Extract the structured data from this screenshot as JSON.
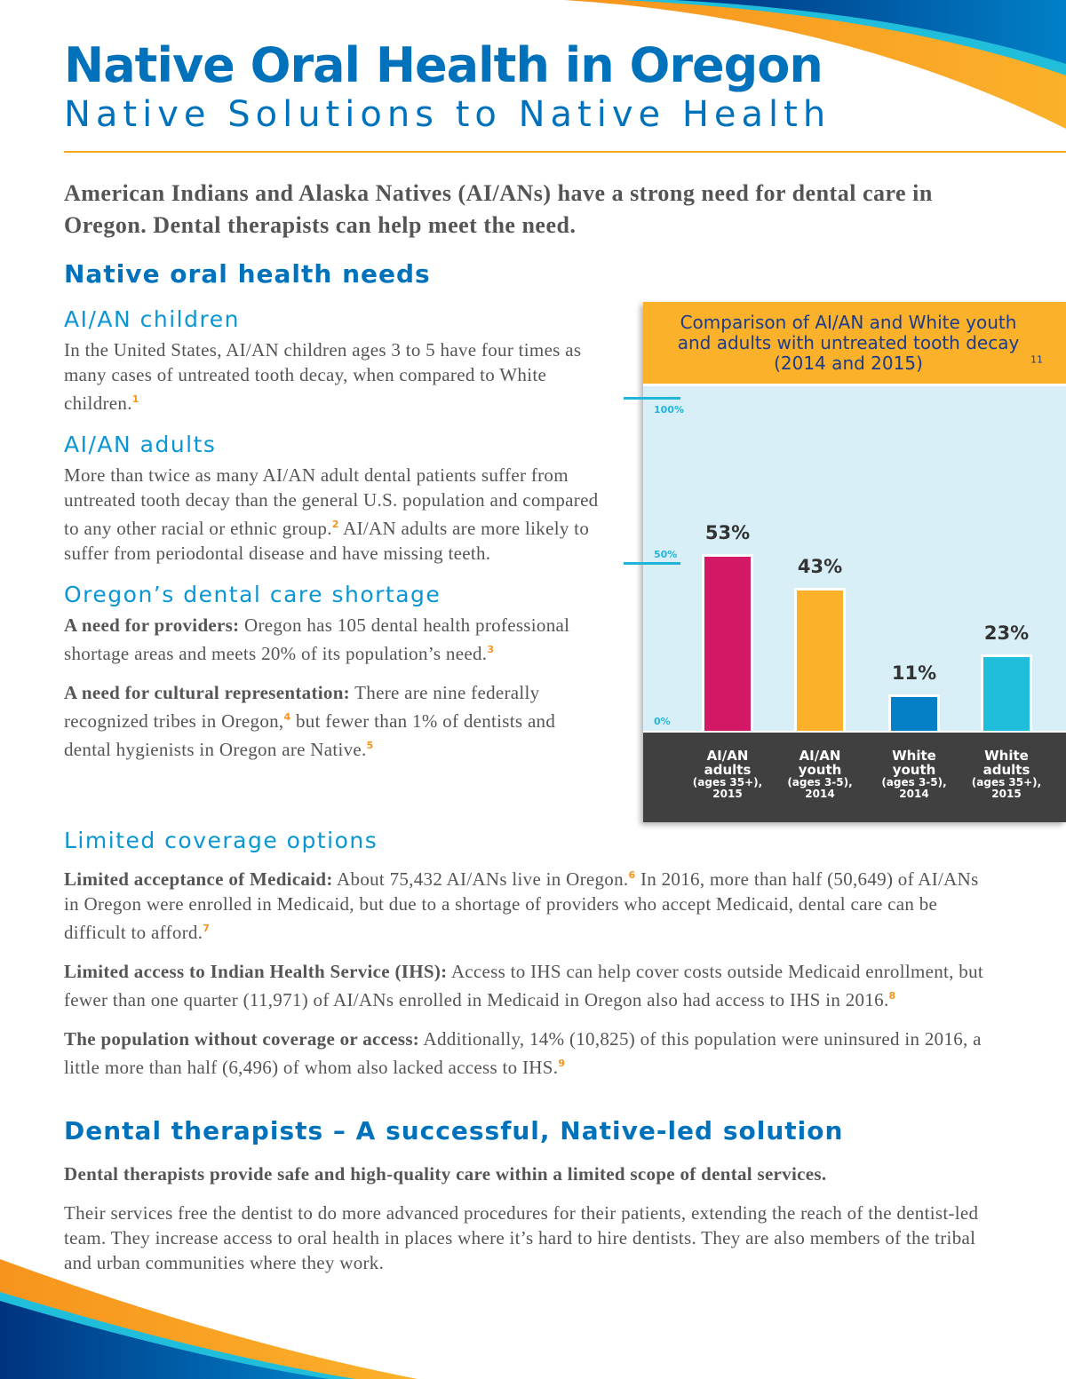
{
  "header": {
    "title": "Native Oral Health in Oregon",
    "subtitle": "Native Solutions to Native Health"
  },
  "intro": "American Indians and Alaska Natives (AI/ANs) have a strong need for dental care in Oregon. Dental therapists can help meet the need.",
  "needs": {
    "heading": "Native oral health needs",
    "children": {
      "heading": "AI/AN children",
      "text": "In the United States, AI/AN children ages 3 to 5 have four times as many cases of untreated tooth decay, when compared to White children.",
      "ref": "1"
    },
    "adults": {
      "heading": "AI/AN adults",
      "text1": "More than twice as many AI/AN adult dental patients suffer from untreated tooth decay than the general U.S. population and compared to any other racial or ethnic group.",
      "ref": "2",
      "text2": " AI/AN adults are more likely to suffer from periodontal disease and have missing teeth."
    },
    "shortage": {
      "heading": "Oregon’s dental care shortage",
      "p1_lead": "A need for providers:",
      "p1_text": " Oregon has 105 dental health professional shortage areas and meets 20% of its population’s need.",
      "p1_ref": "3",
      "p2_lead": "A need for cultural representation:",
      "p2_text1": " There are nine federally recognized tribes in Oregon,",
      "p2_ref1": "4",
      "p2_text2": " but fewer than 1% of dentists and dental hygienists in Oregon are Native.",
      "p2_ref2": "5"
    }
  },
  "coverage": {
    "heading": "Limited coverage options",
    "p1_lead": "Limited acceptance of Medicaid:",
    "p1_text1": " About 75,432 AI/ANs live in Oregon.",
    "p1_ref1": "6",
    "p1_text2": " In 2016, more than half (50,649) of AI/ANs in Oregon were enrolled in Medicaid, but due to a shortage of providers who accept Medicaid, dental care can be difficult to afford.",
    "p1_ref2": "7",
    "p2_lead": "Limited access to Indian Health Service (IHS):",
    "p2_text": " Access to IHS can help cover costs outside Medicaid enrollment, but fewer than one quarter (11,971) of AI/ANs enrolled in Medicaid in Oregon also had access to IHS in 2016.",
    "p2_ref": "8",
    "p3_lead": "The population without coverage or access:",
    "p3_text": " Additionally, 14% (10,825) of this population were uninsured in 2016, a little more than half (6,496) of whom also lacked access to IHS.",
    "p3_ref": "9"
  },
  "therapists": {
    "heading": "Dental therapists – A successful, Native-led solution",
    "lead": "Dental therapists provide safe and high-quality care within a limited scope of dental services.",
    "text": "Their services free the dentist to do more advanced procedures for their patients, extending the reach of the dentist-led team. They increase access to oral health in places where it’s hard to hire dentists. They are also members of the tribal and urban communities where they work."
  },
  "chart_data": {
    "type": "bar",
    "title": "Comparison of AI/AN and White youth and adults with untreated tooth decay (2014 and 2015)",
    "title_ref": "11",
    "categories": [
      {
        "line1": "AI/AN",
        "line2": "adults",
        "line3": "(ages 35+),",
        "line4": "2015"
      },
      {
        "line1": "AI/AN",
        "line2": "youth",
        "line3": "(ages 3-5),",
        "line4": "2014"
      },
      {
        "line1": "White",
        "line2": "youth",
        "line3": "(ages 3-5),",
        "line4": "2014"
      },
      {
        "line1": "White",
        "line2": "adults",
        "line3": "(ages 35+),",
        "line4": "2015"
      }
    ],
    "values": [
      53,
      43,
      11,
      23
    ],
    "labels": [
      "53%",
      "43%",
      "11%",
      "23%"
    ],
    "colors": [
      "#d31965",
      "#fbb12a",
      "#0580c7",
      "#21bedc"
    ],
    "yticks": [
      "0%",
      "50%",
      "100%"
    ],
    "ylim": [
      0,
      100
    ],
    "grid": false
  },
  "colors": {
    "brand_blue": "#0072bc",
    "accent_orange": "#f7941d",
    "chart_header": "#fbb12a",
    "plot_bg": "#d9eff8"
  }
}
